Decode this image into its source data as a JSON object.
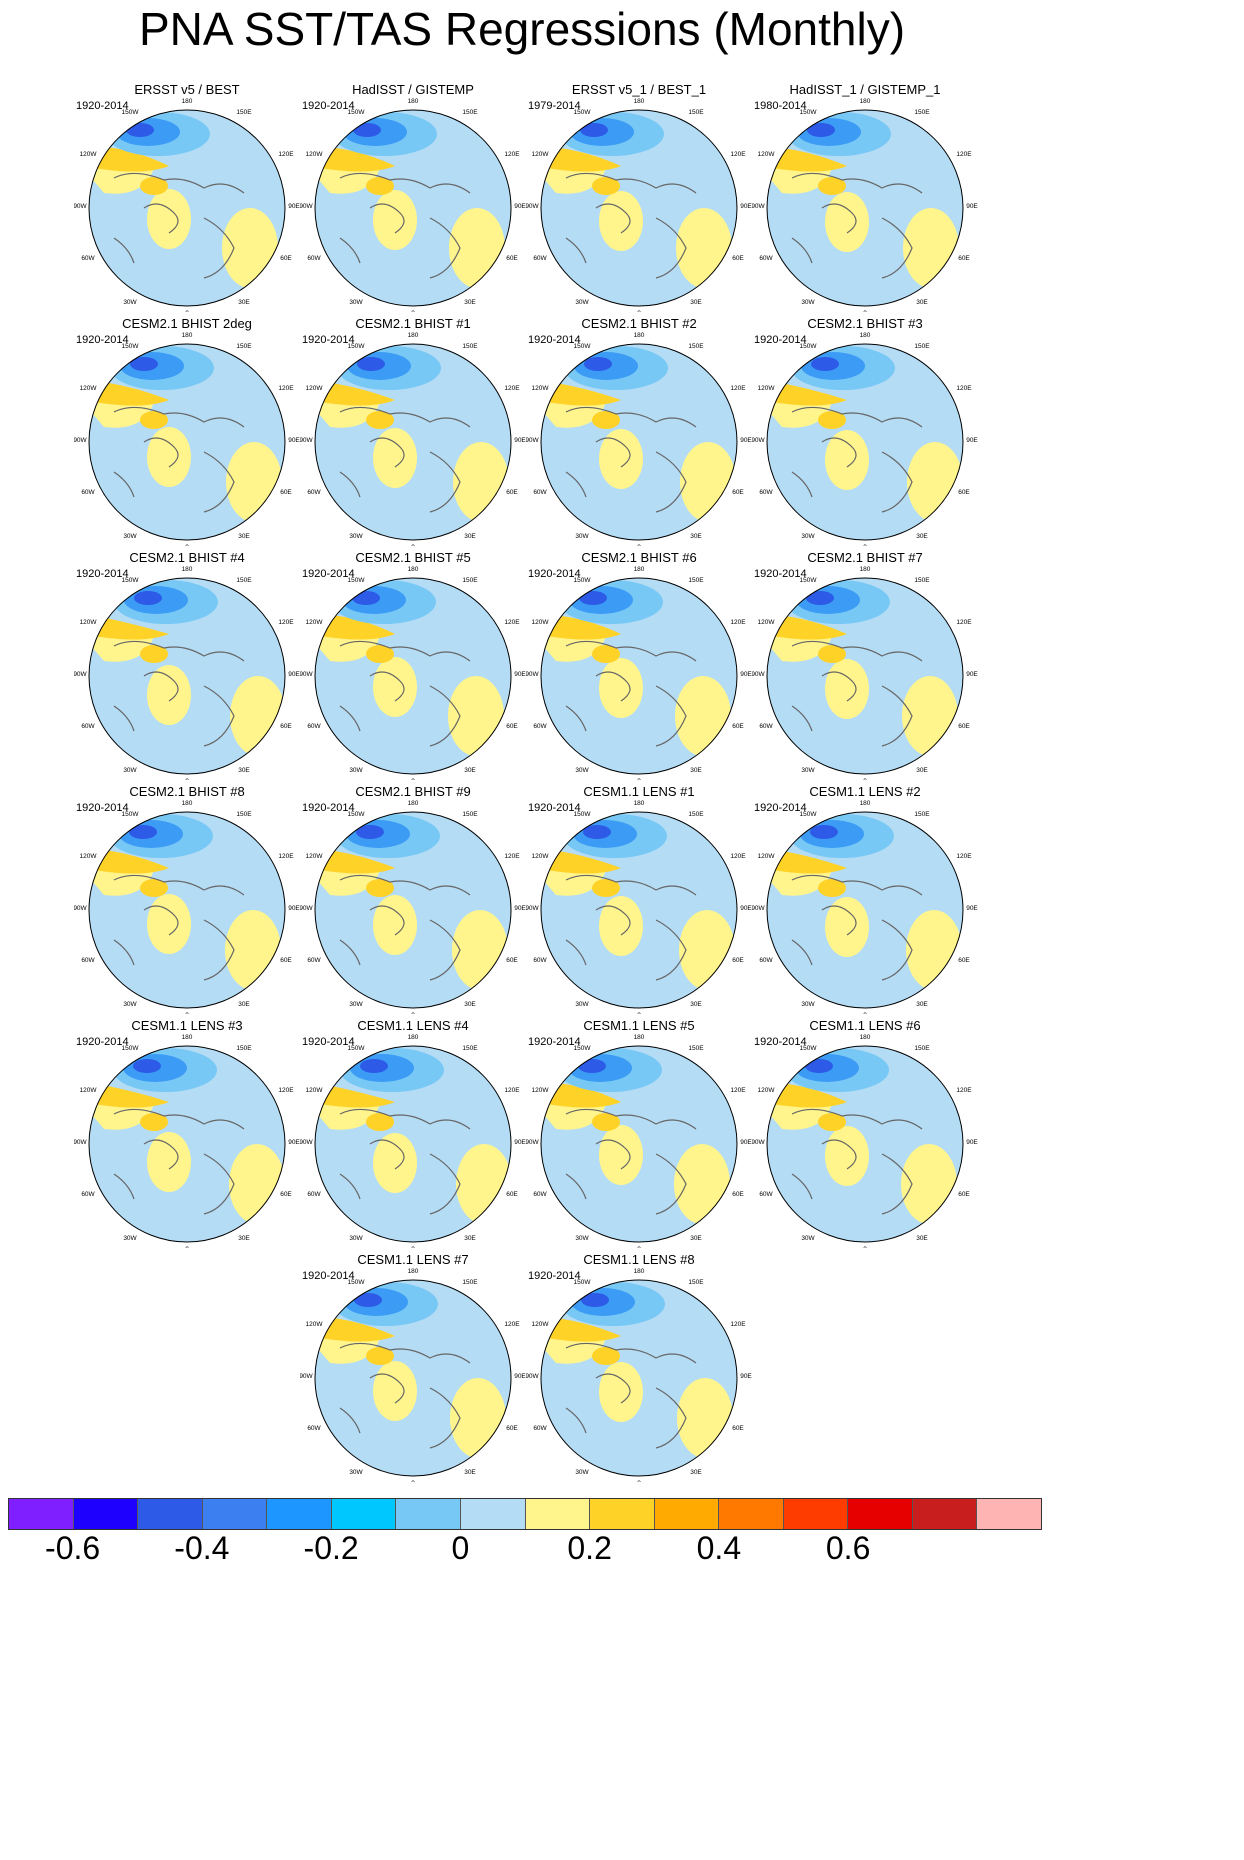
{
  "title": "PNA SST/TAS Regressions (Monthly)",
  "map_labels": {
    "top": "180",
    "top_left": "150W",
    "top_right": "150E",
    "upper_left": "120W",
    "upper_right": "120E",
    "left": "90W",
    "right": "90E",
    "lower_left": "60W",
    "lower_right": "60E",
    "bottom_left": "30W",
    "bottom_right": "30E",
    "bottom": "0"
  },
  "panels": [
    {
      "title": "ERSST v5 / BEST",
      "period": "1920-2014"
    },
    {
      "title": "HadISST / GISTEMP",
      "period": "1920-2014"
    },
    {
      "title": "ERSST v5_1 / BEST_1",
      "period": "1979-2014"
    },
    {
      "title": "HadISST_1 / GISTEMP_1",
      "period": "1980-2014"
    },
    {
      "title": "CESM2.1 BHIST 2deg",
      "period": "1920-2014"
    },
    {
      "title": "CESM2.1 BHIST #1",
      "period": "1920-2014"
    },
    {
      "title": "CESM2.1 BHIST #2",
      "period": "1920-2014"
    },
    {
      "title": "CESM2.1 BHIST #3",
      "period": "1920-2014"
    },
    {
      "title": "CESM2.1 BHIST #4",
      "period": "1920-2014"
    },
    {
      "title": "CESM2.1 BHIST #5",
      "period": "1920-2014"
    },
    {
      "title": "CESM2.1 BHIST #6",
      "period": "1920-2014"
    },
    {
      "title": "CESM2.1 BHIST #7",
      "period": "1920-2014"
    },
    {
      "title": "CESM2.1 BHIST #8",
      "period": "1920-2014"
    },
    {
      "title": "CESM2.1 BHIST #9",
      "period": "1920-2014"
    },
    {
      "title": "CESM1.1 LENS #1",
      "period": "1920-2014"
    },
    {
      "title": "CESM1.1 LENS #2",
      "period": "1920-2014"
    },
    {
      "title": "CESM1.1 LENS #3",
      "period": "1920-2014"
    },
    {
      "title": "CESM1.1 LENS #4",
      "period": "1920-2014"
    },
    {
      "title": "CESM1.1 LENS #5",
      "period": "1920-2014"
    },
    {
      "title": "CESM1.1 LENS #6",
      "period": "1920-2014"
    },
    {
      "title": "CESM1.1 LENS #7",
      "period": "1920-2014"
    },
    {
      "title": "CESM1.1 LENS #8",
      "period": "1920-2014"
    }
  ],
  "colorbar": {
    "colors": [
      "#7f1eff",
      "#1e00ff",
      "#2d5ae6",
      "#3c7ff0",
      "#1e96ff",
      "#00c8ff",
      "#78c8f5",
      "#b4dcf5",
      "#fff58c",
      "#ffd228",
      "#ffaa00",
      "#ff7800",
      "#ff3c00",
      "#e60000",
      "#c81e1e",
      "#ffb4b4"
    ],
    "tick_labels": [
      {
        "value": -0.6,
        "text": "-0.6"
      },
      {
        "value": -0.4,
        "text": "-0.4"
      },
      {
        "value": -0.2,
        "text": "-0.2"
      },
      {
        "value": 0,
        "text": "0"
      },
      {
        "value": 0.2,
        "text": "0.2"
      },
      {
        "value": 0.4,
        "text": "0.4"
      },
      {
        "value": 0.6,
        "text": "0.6"
      }
    ]
  }
}
